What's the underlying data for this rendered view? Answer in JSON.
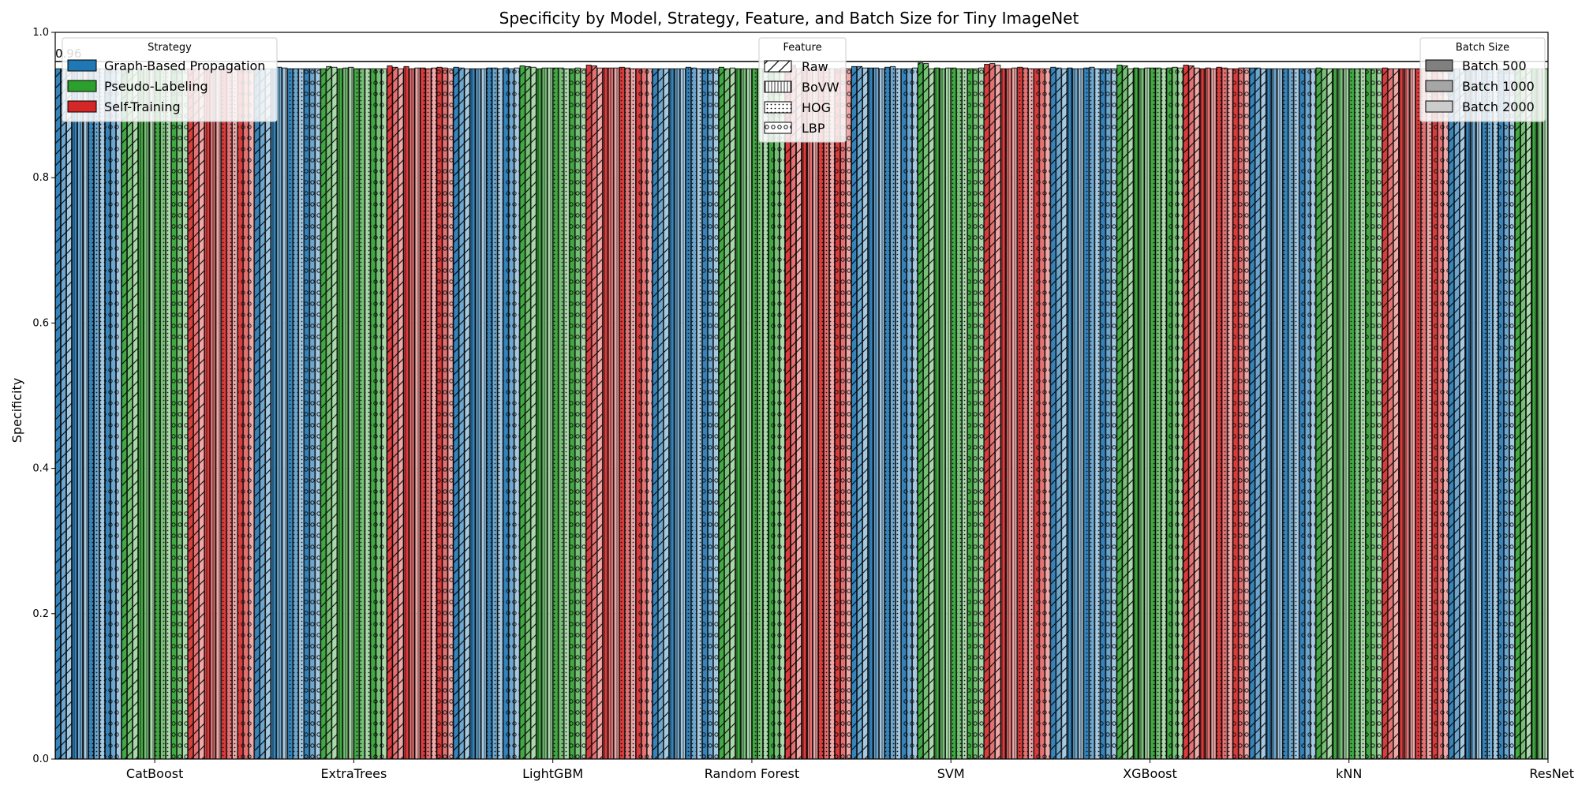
{
  "chart_data": {
    "type": "bar",
    "title": "Specificity by Model, Strategy, Feature, and Batch Size for Tiny ImageNet",
    "xlabel": "",
    "ylabel": "Specificity",
    "ylim": [
      0,
      1
    ],
    "yticks": [
      "0.0",
      "0.2",
      "0.4",
      "0.6",
      "0.8",
      "1.0"
    ],
    "grid": "y",
    "categories": [
      "CatBoost",
      "ExtraTrees",
      "LightGBM",
      "Random Forest",
      "SVM",
      "XGBoost",
      "kNN",
      "ResNet"
    ],
    "reference_line": {
      "value": 0.96,
      "label": "0.96"
    },
    "strategies": [
      {
        "name": "Graph-Based Propagation",
        "color": "#1f77b4"
      },
      {
        "name": "Pseudo-Labeling",
        "color": "#2ca02c"
      },
      {
        "name": "Self-Training",
        "color": "#d62728"
      }
    ],
    "features": [
      {
        "name": "Raw",
        "hatch": "slash"
      },
      {
        "name": "BoVW",
        "hatch": "vline"
      },
      {
        "name": "HOG",
        "hatch": "dots"
      },
      {
        "name": "LBP",
        "hatch": "circles"
      }
    ],
    "batch_sizes": [
      {
        "name": "Batch 500",
        "opacity": 0.9,
        "swatch": "#808080"
      },
      {
        "name": "Batch 1000",
        "opacity": 0.65,
        "swatch": "#a6a6a6"
      },
      {
        "name": "Batch 2000",
        "opacity": 0.4,
        "swatch": "#cccccc"
      }
    ],
    "series_values": {
      "CatBoost": [
        [
          [
            0.95,
            0.95,
            0.95
          ],
          [
            0.95,
            0.95,
            0.95
          ],
          [
            0.95,
            0.95,
            0.95
          ],
          [
            0.95,
            0.95,
            0.95
          ]
        ],
        [
          [
            0.95,
            0.95,
            0.95
          ],
          [
            0.95,
            0.95,
            0.95
          ],
          [
            0.95,
            0.95,
            0.95
          ],
          [
            0.95,
            0.95,
            0.95
          ]
        ],
        [
          [
            0.95,
            0.95,
            0.95
          ],
          [
            0.95,
            0.95,
            0.95
          ],
          [
            0.95,
            0.95,
            0.95
          ],
          [
            0.95,
            0.95,
            0.95
          ]
        ]
      ],
      "ExtraTrees": [
        [
          [
            0.95,
            0.95,
            0.95
          ],
          [
            0.95,
            0.952,
            0.951
          ],
          [
            0.95,
            0.95,
            0.95
          ],
          [
            0.95,
            0.95,
            0.95
          ]
        ],
        [
          [
            0.95,
            0.953,
            0.952
          ],
          [
            0.95,
            0.951,
            0.952
          ],
          [
            0.95,
            0.95,
            0.95
          ],
          [
            0.95,
            0.95,
            0.95
          ]
        ],
        [
          [
            0.954,
            0.952,
            0.95
          ],
          [
            0.953,
            0.95,
            0.951
          ],
          [
            0.951,
            0.95,
            0.951
          ],
          [
            0.952,
            0.951,
            0.95
          ]
        ]
      ],
      "LightGBM": [
        [
          [
            0.952,
            0.951,
            0.95
          ],
          [
            0.95,
            0.95,
            0.95
          ],
          [
            0.951,
            0.951,
            0.95
          ],
          [
            0.951,
            0.95,
            0.951
          ]
        ],
        [
          [
            0.954,
            0.953,
            0.952
          ],
          [
            0.95,
            0.951,
            0.951
          ],
          [
            0.951,
            0.951,
            0.95
          ],
          [
            0.95,
            0.951,
            0.95
          ]
        ],
        [
          [
            0.955,
            0.954,
            0.951
          ],
          [
            0.951,
            0.951,
            0.951
          ],
          [
            0.952,
            0.951,
            0.95
          ],
          [
            0.95,
            0.95,
            0.95
          ]
        ]
      ],
      "Random Forest": [
        [
          [
            0.95,
            0.95,
            0.95
          ],
          [
            0.95,
            0.95,
            0.95
          ],
          [
            0.952,
            0.951,
            0.95
          ],
          [
            0.95,
            0.95,
            0.95
          ]
        ],
        [
          [
            0.952,
            0.95,
            0.951
          ],
          [
            0.95,
            0.95,
            0.95
          ],
          [
            0.95,
            0.95,
            0.95
          ],
          [
            0.951,
            0.95,
            0.95
          ]
        ],
        [
          [
            0.952,
            0.955,
            0.95
          ],
          [
            0.951,
            0.95,
            0.95
          ],
          [
            0.953,
            0.951,
            0.95
          ],
          [
            0.95,
            0.951,
            0.95
          ]
        ]
      ],
      "SVM": [
        [
          [
            0.953,
            0.953,
            0.951
          ],
          [
            0.951,
            0.951,
            0.95
          ],
          [
            0.952,
            0.953,
            0.95
          ],
          [
            0.95,
            0.95,
            0.951
          ]
        ],
        [
          [
            0.958,
            0.957,
            0.95
          ],
          [
            0.951,
            0.95,
            0.951
          ],
          [
            0.951,
            0.95,
            0.95
          ],
          [
            0.95,
            0.95,
            0.951
          ]
        ],
        [
          [
            0.956,
            0.957,
            0.955
          ],
          [
            0.95,
            0.95,
            0.951
          ],
          [
            0.952,
            0.951,
            0.95
          ],
          [
            0.95,
            0.95,
            0.95
          ]
        ]
      ],
      "XGBoost": [
        [
          [
            0.952,
            0.951,
            0.95
          ],
          [
            0.951,
            0.95,
            0.95
          ],
          [
            0.951,
            0.952,
            0.95
          ],
          [
            0.95,
            0.95,
            0.95
          ]
        ],
        [
          [
            0.955,
            0.954,
            0.95
          ],
          [
            0.951,
            0.95,
            0.951
          ],
          [
            0.951,
            0.951,
            0.95
          ],
          [
            0.951,
            0.952,
            0.951
          ]
        ],
        [
          [
            0.955,
            0.954,
            0.951
          ],
          [
            0.95,
            0.951,
            0.95
          ],
          [
            0.952,
            0.951,
            0.95
          ],
          [
            0.95,
            0.951,
            0.951
          ]
        ]
      ],
      "kNN": [
        [
          [
            0.951,
            0.951,
            0.95
          ],
          [
            0.95,
            0.95,
            0.95
          ],
          [
            0.95,
            0.95,
            0.95
          ],
          [
            0.95,
            0.95,
            0.95
          ]
        ],
        [
          [
            0.951,
            0.95,
            0.95
          ],
          [
            0.95,
            0.95,
            0.95
          ],
          [
            0.95,
            0.95,
            0.95
          ],
          [
            0.95,
            0.95,
            0.95
          ]
        ],
        [
          [
            0.951,
            0.95,
            0.95
          ],
          [
            0.95,
            0.95,
            0.95
          ],
          [
            0.95,
            0.95,
            0.95
          ],
          [
            0.95,
            0.95,
            0.95
          ]
        ]
      ],
      "ResNet": [
        [
          [
            0.95,
            0.95,
            0.95
          ],
          [
            0.95,
            0.95,
            0.95
          ],
          [
            0.95,
            0.95,
            0.95
          ],
          [
            0.95,
            0.95,
            0.95
          ]
        ],
        [
          [
            0.95,
            0.95,
            0.95
          ],
          [
            0.95,
            0.95,
            0.95
          ],
          [
            0.95,
            0.95,
            0.95
          ],
          [
            0.95,
            0.95,
            0.95
          ]
        ],
        [
          [
            0.95,
            0.95,
            0.95
          ],
          [
            0.95,
            0.95,
            0.95
          ],
          [
            0.95,
            0.95,
            0.95
          ],
          [
            0.95,
            0.95,
            0.95
          ]
        ]
      ]
    },
    "legends": {
      "strategy": {
        "title": "Strategy",
        "placement": "top-left"
      },
      "feature": {
        "title": "Feature",
        "placement": "top-center"
      },
      "batch": {
        "title": "Batch Size",
        "placement": "top-right"
      }
    }
  }
}
